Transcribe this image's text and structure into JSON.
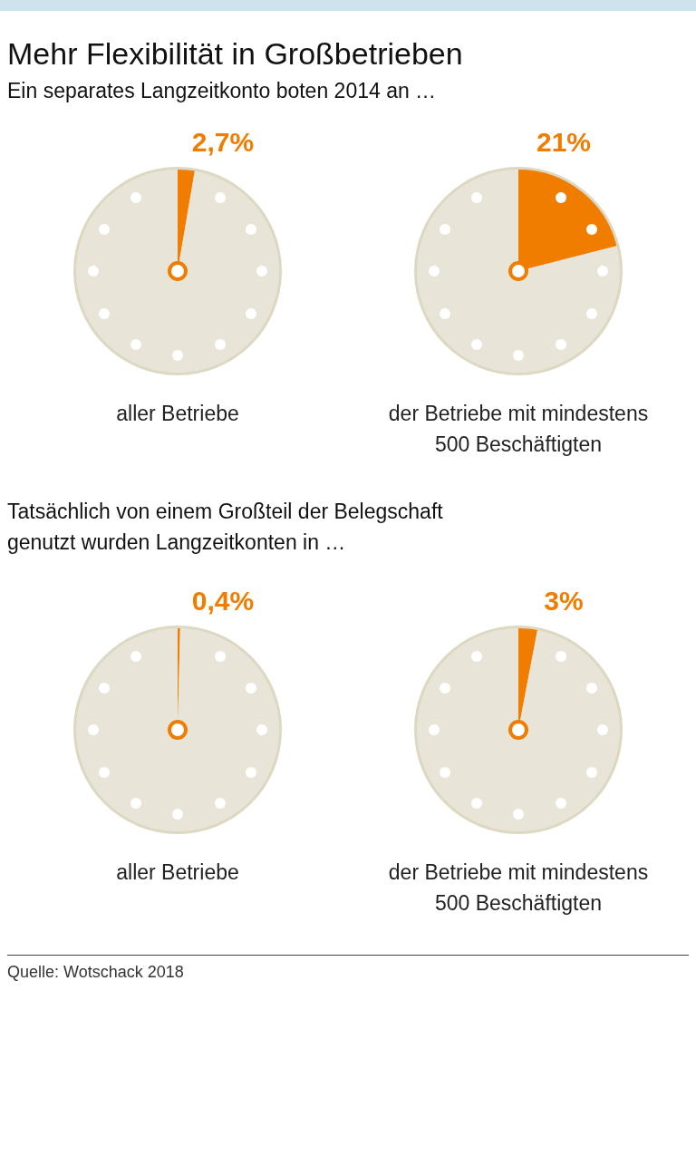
{
  "chart_data": [
    {
      "type": "pie",
      "title": "Mehr Flexibilität in Großbetrieben",
      "subtitle": "Ein separates Langzeitkonto boten 2014 an …",
      "xlabel": "aller Betriebe",
      "categories": [
        null,
        null
      ],
      "values": [
        2.7,
        97.3
      ],
      "colors": [
        "#f07d00",
        "#e8e5d8"
      ],
      "value_labels": [
        "2,7%",
        null
      ]
    },
    {
      "type": "pie",
      "xlabel": "der Betriebe mit mindestens 500 Beschäftigten",
      "categories": [
        null,
        null
      ],
      "values": [
        21,
        79
      ],
      "colors": [
        "#f07d00",
        "#e8e5d8"
      ],
      "value_labels": [
        "21%",
        null
      ]
    },
    {
      "type": "pie",
      "subtitle": "Tatsächlich von einem Großteil der Belegschaft genutzt wurden Langzeitkonten in …",
      "xlabel": "aller Betriebe",
      "categories": [
        null,
        null
      ],
      "values": [
        0.4,
        99.6
      ],
      "colors": [
        "#f07d00",
        "#e8e5d8"
      ],
      "value_labels": [
        "0,4%",
        null
      ]
    },
    {
      "type": "pie",
      "xlabel": "der Betriebe mit mindestens 500 Beschäftigten",
      "categories": [
        null,
        null
      ],
      "values": [
        3,
        97
      ],
      "colors": [
        "#f07d00",
        "#e8e5d8"
      ],
      "value_labels": [
        "3%",
        null
      ],
      "annotations": [
        "Quelle: Wotschack 2018"
      ]
    }
  ]
}
